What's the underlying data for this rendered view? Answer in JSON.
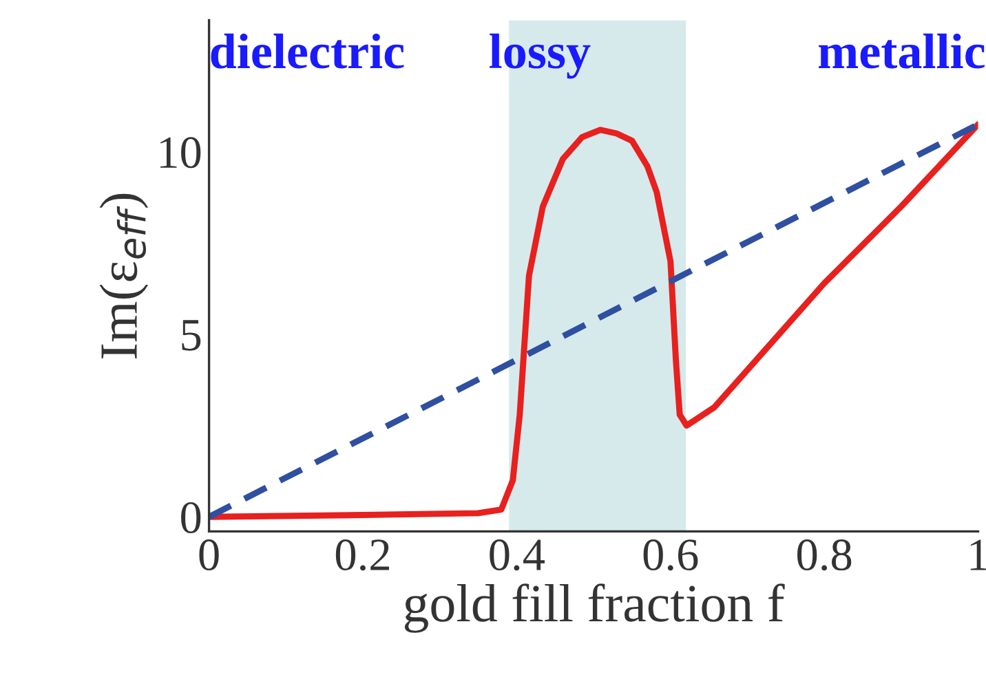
{
  "chart_data": {
    "type": "line",
    "xlabel": "gold fill fraction f",
    "ylabel": "Im(ε$_{eff}$)",
    "series": [
      {
        "color": "#e8201e",
        "line_style": "solid",
        "x": [
          0,
          0.2,
          0.35,
          0.38,
          0.395,
          0.404,
          0.416,
          0.434,
          0.46,
          0.485,
          0.509,
          0.53,
          0.55,
          0.57,
          0.582,
          0.6,
          0.607,
          0.612,
          0.621,
          0.657,
          0.8,
          0.9,
          1.0
        ],
        "values": [
          0,
          0.05,
          0.1,
          0.2,
          1.0,
          2.8,
          6.6,
          8.5,
          9.8,
          10.4,
          10.6,
          10.5,
          10.3,
          9.6,
          8.9,
          7.0,
          4.3,
          2.8,
          2.5,
          3.0,
          6.4,
          8.5,
          10.75
        ]
      },
      {
        "color": "#2f4fa0",
        "line_style": "dashed",
        "x": [
          0,
          1
        ],
        "values": [
          0,
          10.75
        ]
      }
    ],
    "bands": [
      {
        "axis": "x",
        "from": 0.39,
        "to": 0.62,
        "color": "#b5d9dc"
      }
    ],
    "annotations": [
      "dielectric",
      "lossy",
      "metallic"
    ],
    "xlim": [
      0,
      1
    ],
    "ylim": [
      -0.4,
      13.6
    ],
    "xticks": [
      0,
      0.2,
      0.4,
      0.6,
      0.8,
      1
    ],
    "yticks": [
      0,
      5,
      10
    ],
    "grid": false
  }
}
